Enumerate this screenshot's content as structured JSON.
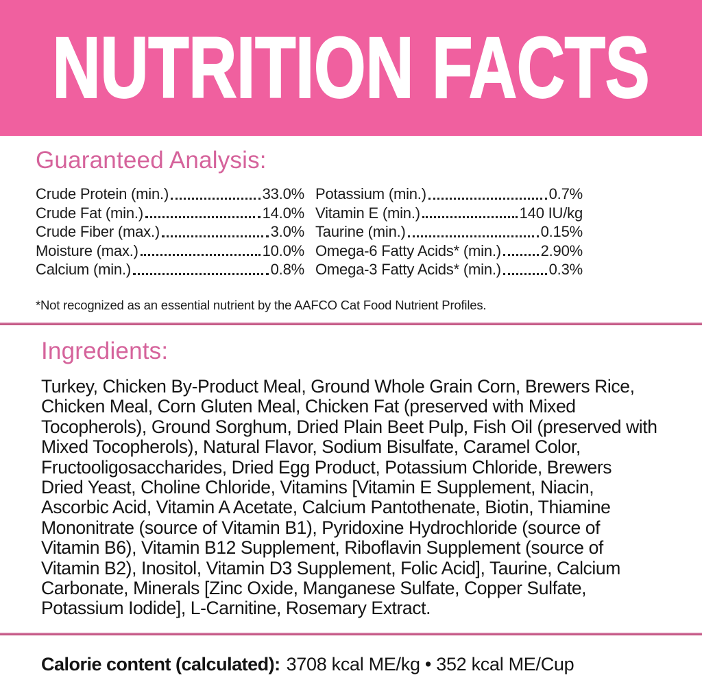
{
  "banner": {
    "title": "NUTRITION FACTS",
    "bg_color": "#F0609F",
    "text_color": "#FFFFFF"
  },
  "guaranteed_analysis": {
    "heading": "Guaranteed Analysis:",
    "columns": [
      {
        "rows": [
          {
            "label": "Crude Protein (min.)",
            "value": "33.0%"
          },
          {
            "label": "Crude Fat (min.)",
            "value": "14.0%"
          },
          {
            "label": "Crude Fiber (max.)",
            "value": "3.0%"
          },
          {
            "label": "Moisture (max.)",
            "value": "10.0%"
          },
          {
            "label": "Calcium (min.)",
            "value": "0.8%"
          }
        ]
      },
      {
        "rows": [
          {
            "label": "Potassium (min.)",
            "value": "0.7%"
          },
          {
            "label": "Vitamin E (min.)",
            "value": "140 IU/kg"
          },
          {
            "label": "Taurine (min.)",
            "value": "0.15%"
          },
          {
            "label": "Omega-6 Fatty Acids* (min.)",
            "value": "2.90%"
          },
          {
            "label": "Omega-3 Fatty Acids* (min.)",
            "value": "0.3%"
          }
        ]
      }
    ],
    "footnote": "*Not recognized as an essential nutrient by the AAFCO Cat Food Nutrient Profiles."
  },
  "ingredients": {
    "heading": "Ingredients:",
    "text": "Turkey, Chicken By-Product Meal, Ground Whole Grain Corn, Brewers Rice, Chicken Meal, Corn Gluten Meal, Chicken Fat (preserved with Mixed Tocopherols), Ground Sorghum, Dried Plain Beet Pulp, Fish Oil (preserved with Mixed Tocopherols), Natural Flavor, Sodium Bisulfate, Caramel Color, Fructooligosaccharides, Dried Egg Product, Potassium Chloride, Brewers Dried Yeast, Choline Chloride, Vitamins [Vitamin E Supplement, Niacin, Ascorbic Acid, Vitamin A Acetate, Calcium Pantothenate, Biotin, Thiamine Mononitrate (source of Vitamin B1), Pyridoxine Hydrochloride (source of Vitamin B6), Vitamin B12 Supplement, Riboflavin Supplement (source of Vitamin B2), Inositol, Vitamin D3 Supplement, Folic Acid], Taurine, Calcium Carbonate, Minerals [Zinc Oxide, Manganese Sulfate, Copper Sulfate, Potassium Iodide], L-Carnitine, Rosemary Extract."
  },
  "calorie": {
    "label": "Calorie content (calculated):",
    "value": "3708 kcal ME/kg • 352 kcal ME/Cup"
  },
  "colors": {
    "banner_pink": "#F0609F",
    "heading_pink": "#D5639B",
    "divider_pink": "#C75E8C",
    "text": "#1B1B1B"
  }
}
